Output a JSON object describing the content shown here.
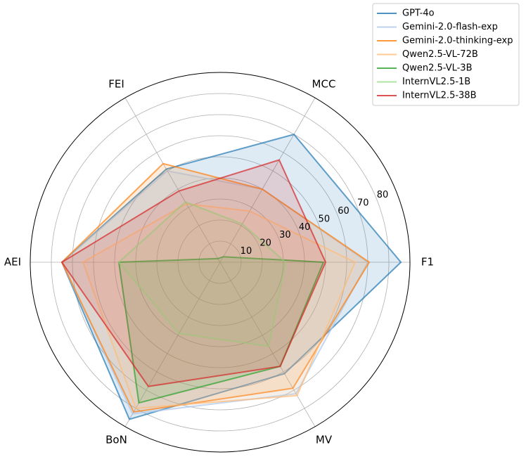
{
  "chart_data": {
    "type": "radar",
    "categories": [
      "F1",
      "MCC",
      "FEI",
      "AEI",
      "BoN",
      "MV"
    ],
    "ylim": [
      0,
      90
    ],
    "yticks": [
      10,
      20,
      30,
      40,
      50,
      60,
      70,
      80
    ],
    "grid": true,
    "legend": "upper right",
    "series": [
      {
        "name": "GPT-4o",
        "color": "#1f77b4",
        "values": [
          85.7,
          70,
          51,
          75,
          86,
          61
        ]
      },
      {
        "name": "Gemini-2.0-flash-exp",
        "color": "#aec7e8",
        "values": [
          70,
          40,
          50,
          75,
          83,
          72
        ]
      },
      {
        "name": "Gemini-2.0-thinking-exp",
        "color": "#ff7f0e",
        "values": [
          70.7,
          40,
          54,
          75,
          82,
          69
        ]
      },
      {
        "name": "Qwen2.5-VL-72B",
        "color": "#ffbb78",
        "values": [
          64,
          28,
          32,
          65,
          80,
          73
        ]
      },
      {
        "name": "Qwen2.5-VL-3B",
        "color": "#2ca02c",
        "values": [
          49,
          3,
          2,
          48,
          77,
          57
        ]
      },
      {
        "name": "InternVL2.5-1B",
        "color": "#98df8a",
        "values": [
          31,
          21,
          33,
          48,
          39,
          46
        ]
      },
      {
        "name": "InternVL2.5-38B",
        "color": "#d62728",
        "values": [
          50,
          56,
          39,
          75,
          68,
          57
        ]
      }
    ]
  }
}
